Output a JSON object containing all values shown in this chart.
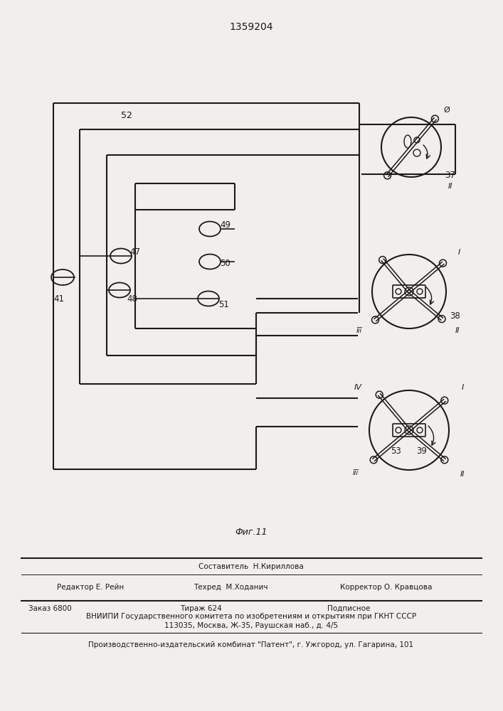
{
  "patent_number": "1359204",
  "figure_label": "Фиг.11",
  "bg_color": "#f0efeb",
  "line_color": "#1a1a1a",
  "page_width": 7.07,
  "page_height": 10.0,
  "bottom_texts": {
    "line1_center": "Составитель  Н.Кириллова",
    "line2_left": "Редактор Е. Рейн",
    "line2_mid": "Техред  М.Ходанич",
    "line2_right": "Корректор О. Кравцова",
    "line3_left": "Заказ 6800",
    "line3_mid": "Тираж 624",
    "line3_right": "Подписное",
    "line4": "ВНИИПИ Государственного комитета по изобретениям и открытиям при ГКНТ СССР",
    "line5": "113035, Москва, Ж-35, Раушская наб., д. 4/5",
    "line6": "Производственно-издательский комбинат \"Патент\", г. Ужгород, ул. Гагарина, 101"
  }
}
